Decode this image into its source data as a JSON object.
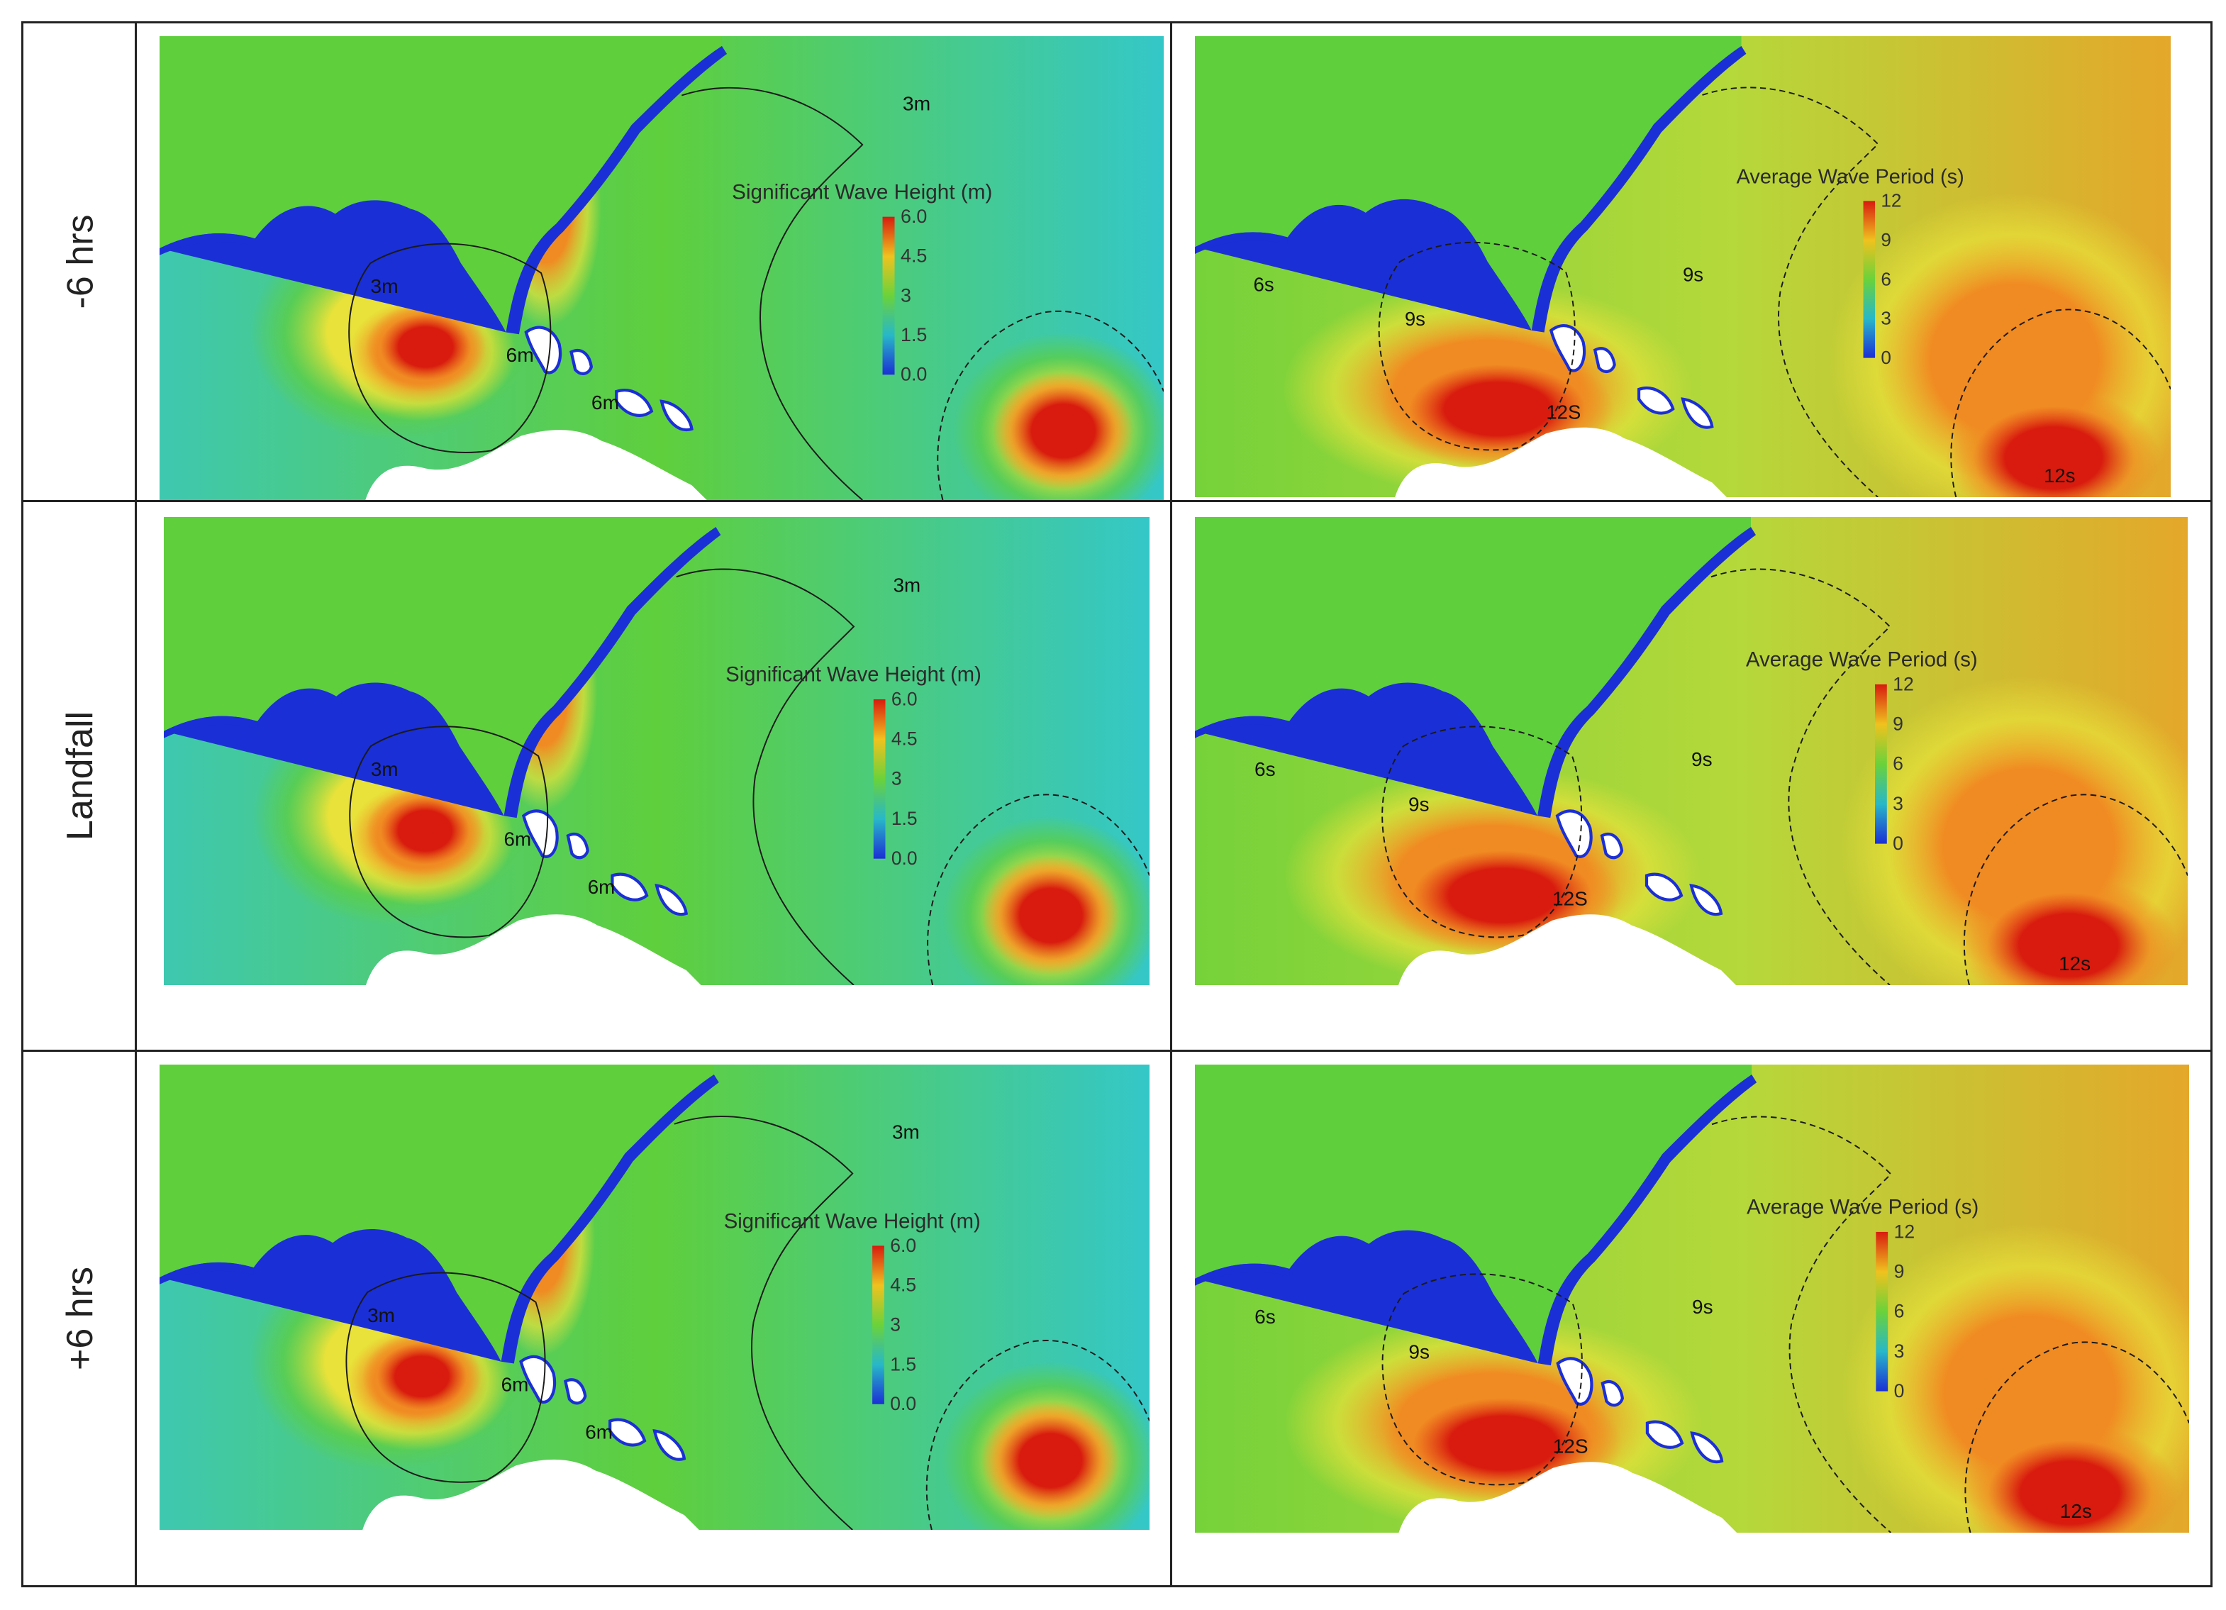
{
  "rows": [
    {
      "label": "-6 hrs"
    },
    {
      "label": "Landfall"
    },
    {
      "label": "+6 hrs"
    }
  ],
  "panels": [
    {
      "variable": "height",
      "legend_title": "Significant Wave Height (m)",
      "legend_ticks": [
        "6.0",
        "4.5",
        "3",
        "1.5",
        "0.0"
      ],
      "contour_labels": [
        "3m",
        "3m",
        "6m",
        "6m"
      ]
    },
    {
      "variable": "period",
      "legend_title": "Average Wave Period (s)",
      "legend_ticks": [
        "12",
        "9",
        "6",
        "3",
        "0"
      ],
      "contour_labels": [
        "6s",
        "9s",
        "9s",
        "12S",
        "12s"
      ]
    },
    {
      "variable": "height",
      "legend_title": "Significant Wave Height (m)",
      "legend_ticks": [
        "6.0",
        "4.5",
        "3",
        "1.5",
        "0.0"
      ],
      "contour_labels": [
        "3m",
        "3m",
        "6m",
        "6m"
      ]
    },
    {
      "variable": "period",
      "legend_title": "Average Wave Period (s)",
      "legend_ticks": [
        "12",
        "9",
        "6",
        "3",
        "0"
      ],
      "contour_labels": [
        "6s",
        "9s",
        "9s",
        "12S",
        "12s"
      ]
    },
    {
      "variable": "height",
      "legend_title": "Significant Wave Height (m)",
      "legend_ticks": [
        "6.0",
        "4.5",
        "3",
        "1.5",
        "0.0"
      ],
      "contour_labels": [
        "3m",
        "3m",
        "6m",
        "6m"
      ]
    },
    {
      "variable": "period",
      "legend_title": "Average Wave Period (s)",
      "legend_ticks": [
        "12",
        "9",
        "6",
        "3",
        "0"
      ],
      "contour_labels": [
        "6s",
        "9s",
        "9s",
        "12S",
        "12s"
      ]
    }
  ],
  "colors": {
    "grid_line": "#222222",
    "land_blue": "#1b2fd6",
    "calm_teal": "#3ec8b0",
    "mid_green": "#5fcf3c",
    "yellow": "#e8e23a",
    "orange": "#f08a22",
    "red": "#d81b0e",
    "land_white": "#ffffff"
  }
}
